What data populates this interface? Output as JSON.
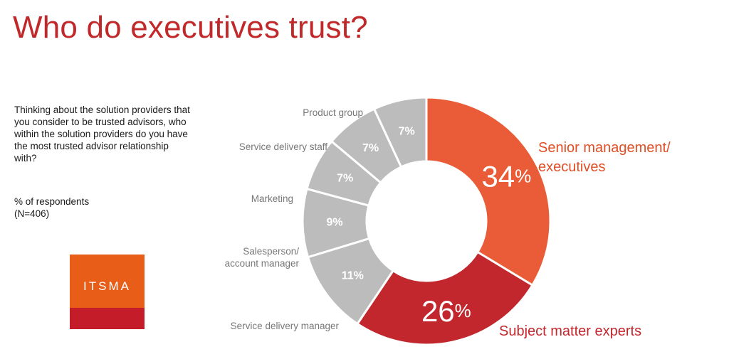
{
  "title": "Who do executives trust?",
  "question": "Thinking about the solution providers that you consider to be trusted advisors, who within the solution providers do you have the most trusted advisor relationship with?",
  "metric": {
    "line1": "% of respondents",
    "line2": "(N=406)"
  },
  "logo": {
    "text": "ITSMA"
  },
  "chart_data": {
    "type": "pie",
    "variant": "donut",
    "title": "",
    "start": "top, clockwise",
    "slices": [
      {
        "label": "Senior management/ executives",
        "label_lines": [
          "Senior management/",
          "executives"
        ],
        "value": 34,
        "display": "34",
        "unit": "%",
        "color": "#e95c37",
        "label_color": "#e14e25",
        "highlight": true
      },
      {
        "label": "Subject matter experts",
        "label_lines": [
          "Subject matter experts"
        ],
        "value": 26,
        "display": "26",
        "unit": "%",
        "color": "#c1272d",
        "label_color": "#c1272d",
        "highlight": true
      },
      {
        "label": "Service delivery manager",
        "label_lines": [
          "Service delivery manager"
        ],
        "value": 11,
        "display": "11%",
        "unit": "",
        "color": "#bcbcbc",
        "label_color": "#777777",
        "highlight": false
      },
      {
        "label": "Salesperson/ account manager",
        "label_lines": [
          "Salesperson/",
          "account manager"
        ],
        "value": 9,
        "display": "9%",
        "unit": "",
        "color": "#bcbcbc",
        "label_color": "#777777",
        "highlight": false
      },
      {
        "label": "Marketing",
        "label_lines": [
          "Marketing"
        ],
        "value": 7,
        "display": "7%",
        "unit": "",
        "color": "#bcbcbc",
        "label_color": "#777777",
        "highlight": false
      },
      {
        "label": "Service delivery staff",
        "label_lines": [
          "Service delivery staff"
        ],
        "value": 7,
        "display": "7%",
        "unit": "",
        "color": "#bcbcbc",
        "label_color": "#777777",
        "highlight": false
      },
      {
        "label": "Product group",
        "label_lines": [
          "Product group"
        ],
        "value": 7,
        "display": "7%",
        "unit": "",
        "color": "#bcbcbc",
        "label_color": "#777777",
        "highlight": false
      }
    ]
  }
}
